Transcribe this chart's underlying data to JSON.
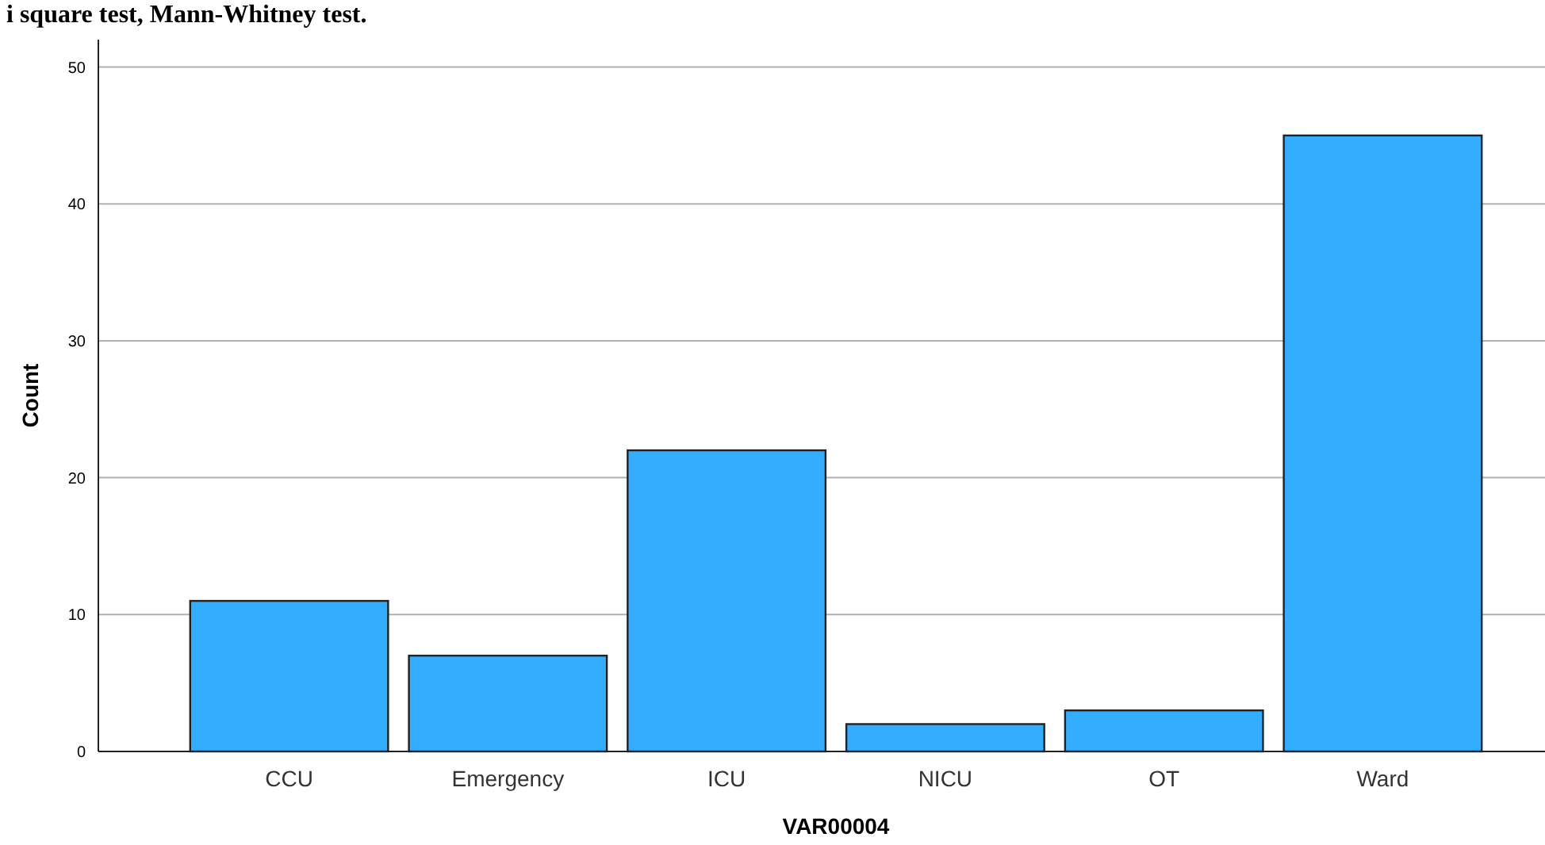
{
  "chart_data": {
    "type": "bar",
    "xlabel": "VAR00004",
    "ylabel": "Count",
    "annotations": [
      "i square test, Mann-Whitney test."
    ],
    "categories": [
      "CCU",
      "Emergency",
      "ICU",
      "NICU",
      "OT",
      "Ward"
    ],
    "values": [
      11,
      7,
      22,
      2,
      3,
      45
    ],
    "color": "#33adff",
    "ylim": [
      0,
      52
    ],
    "yticks": [
      0,
      10,
      20,
      30,
      40,
      50
    ],
    "grid": "y"
  }
}
